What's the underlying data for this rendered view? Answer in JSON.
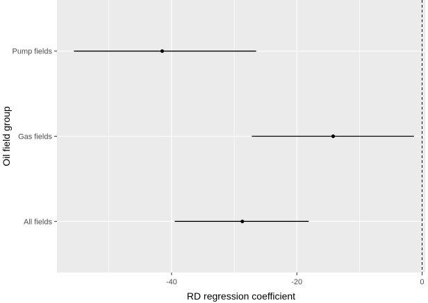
{
  "chart_data": {
    "type": "scatter",
    "subtype": "forest-plot",
    "title": "",
    "xlabel": "RD regression coefficient",
    "ylabel": "Oil field group",
    "categories": [
      "All fields",
      "Gas fields",
      "Pump fields"
    ],
    "estimates": [
      {
        "group": "Pump fields",
        "estimate": -41.5,
        "ci_low": -55.6,
        "ci_high": -26.5
      },
      {
        "group": "Gas fields",
        "estimate": -14.2,
        "ci_low": -27.2,
        "ci_high": -1.3
      },
      {
        "group": "All fields",
        "estimate": -28.7,
        "ci_low": -39.5,
        "ci_high": -18.1
      }
    ],
    "x_ticks": [
      "-40",
      "-20",
      "0"
    ],
    "x_tick_values": [
      -40,
      -20,
      0
    ],
    "xlim": [
      -58.3,
      0.5
    ],
    "reference_line": {
      "x": 0,
      "style": "dashed"
    },
    "grid": true,
    "colors": {
      "panel": "#ebebeb",
      "grid_major": "#ffffff",
      "marks": "#000000",
      "tick_text": "#4d4d4d"
    }
  }
}
